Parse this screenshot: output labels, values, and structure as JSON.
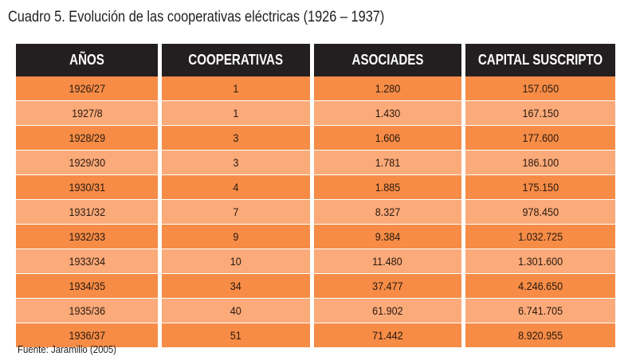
{
  "title": "Cuadro 5. Evolución de las cooperativas eléctricas (1926 – 1937)",
  "table": {
    "headers": [
      "AÑOS",
      "COOPERATIVAS",
      "ASOCIADES",
      "CAPITAL SUSCRIPTO"
    ],
    "rows": [
      [
        "1926/27",
        "1",
        "1.280",
        "157.050"
      ],
      [
        "1927/8",
        "1",
        "1.430",
        "167.150"
      ],
      [
        "1928/29",
        "3",
        "1.606",
        "177.600"
      ],
      [
        "1929/30",
        "3",
        "1.781",
        "186.100"
      ],
      [
        "1930/31",
        "4",
        "1.885",
        "175.150"
      ],
      [
        "1931/32",
        "7",
        "8.327",
        "978.450"
      ],
      [
        "1932/33",
        "9",
        "9.384",
        "1.032.725"
      ],
      [
        "1933/34",
        "10",
        "11.480",
        "1.301.600"
      ],
      [
        "1934/35",
        "34",
        "37.477",
        "4.246.650"
      ],
      [
        "1935/36",
        "40",
        "61.902",
        "6.741.705"
      ],
      [
        "1936/37",
        "51",
        "71.442",
        "8.920.955"
      ]
    ]
  },
  "source": "Fuente: Jaramillo (2005)",
  "colors": {
    "header_bg": "#231f20",
    "row_dark": "#f68c46",
    "row_light": "#fbaa79"
  }
}
